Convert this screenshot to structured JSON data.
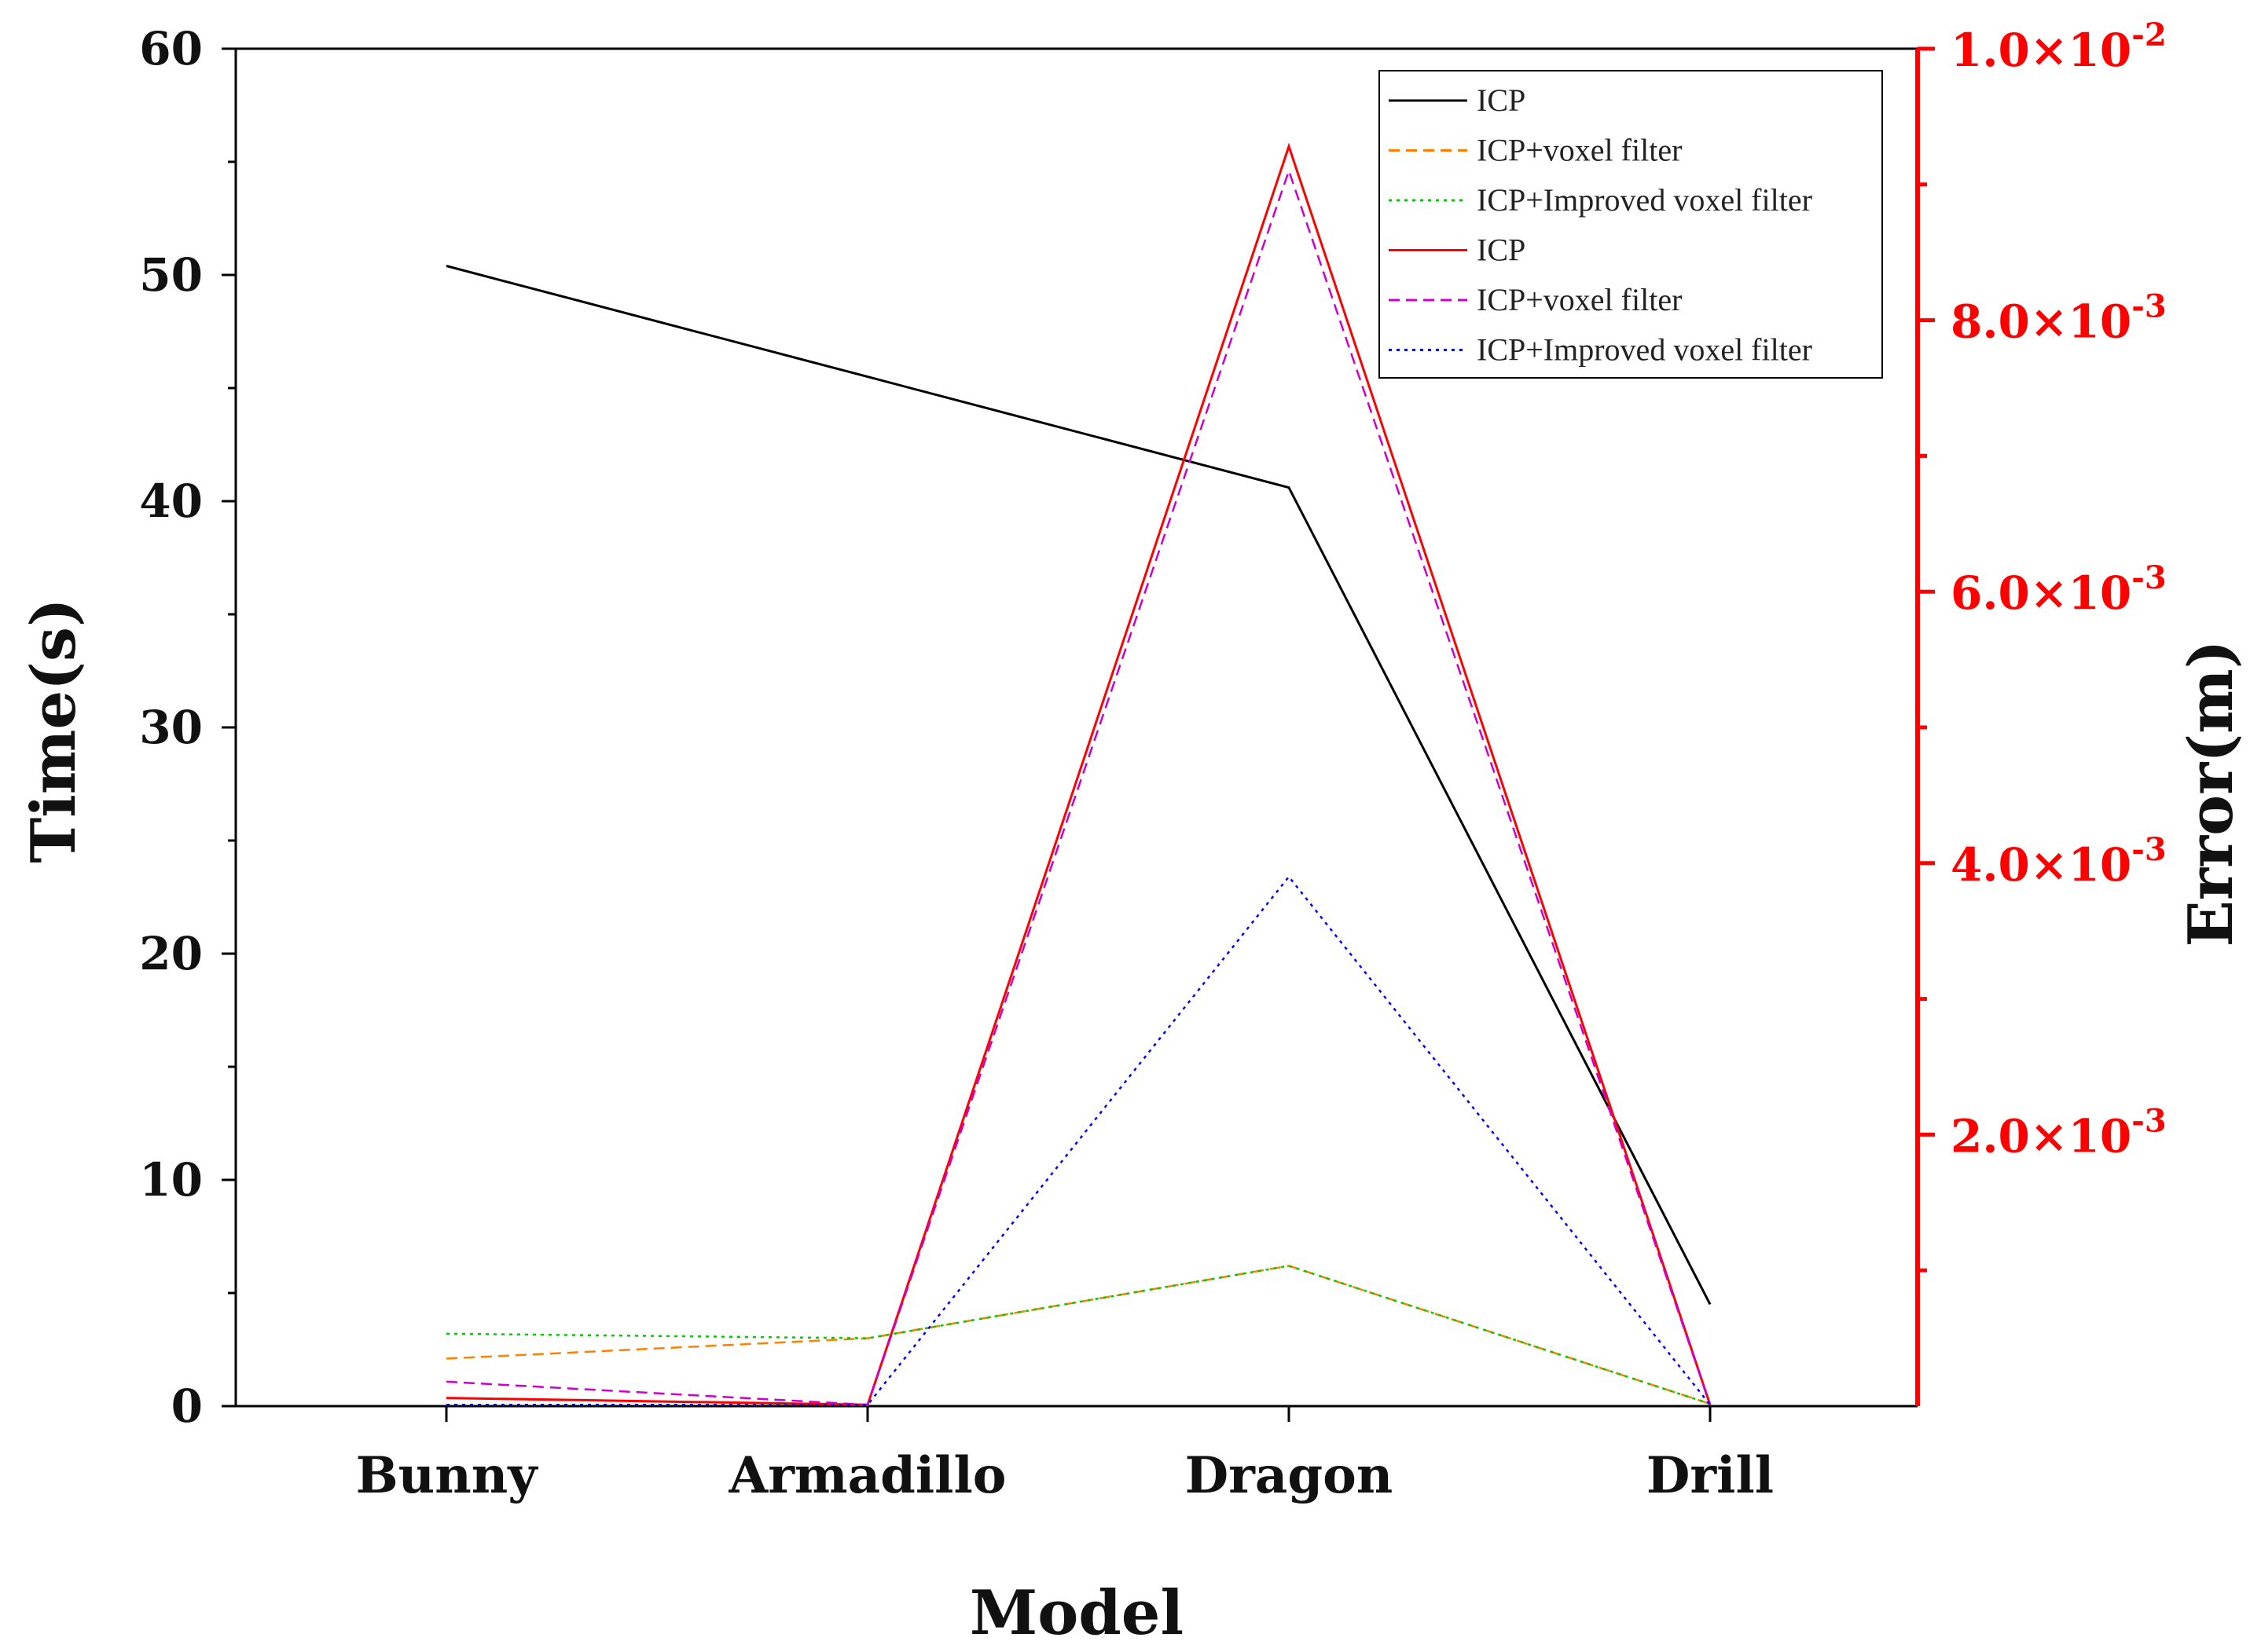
{
  "chart_data": {
    "type": "line",
    "categories": [
      "Bunny",
      "Armadillo",
      "Dragon",
      "Drill"
    ],
    "xlabel": "Model",
    "ylabel_left": "Time(s)",
    "ylabel_right": "Error(m)",
    "ylim_left": [
      0,
      60
    ],
    "ylim_right": [
      0,
      0.01
    ],
    "yticks_left": [
      "0",
      "10",
      "20",
      "30",
      "40",
      "50",
      "60"
    ],
    "yticks_right": [
      {
        "value": 0.002,
        "mantissa": "2.0×10",
        "exp": "-3"
      },
      {
        "value": 0.004,
        "mantissa": "4.0×10",
        "exp": "-3"
      },
      {
        "value": 0.006,
        "mantissa": "6.0×10",
        "exp": "-3"
      },
      {
        "value": 0.008,
        "mantissa": "8.0×10",
        "exp": "-3"
      },
      {
        "value": 0.01,
        "mantissa": "1.0×10",
        "exp": "-2"
      }
    ],
    "legend_position": "top-right",
    "grid": false,
    "series": [
      {
        "name": "ICP",
        "axis": "left",
        "color": "#000000",
        "dash": "solid",
        "values": [
          50.4,
          45.5,
          40.6,
          4.5
        ]
      },
      {
        "name": "ICP+voxel filter",
        "axis": "left",
        "color": "#ff8000",
        "dash": "dashed",
        "values": [
          2.1,
          3.0,
          6.2,
          0.1
        ]
      },
      {
        "name": "ICP+Improved voxel filter",
        "axis": "left",
        "color": "#00cc00",
        "dash": "dotted",
        "values": [
          3.2,
          3.0,
          6.2,
          0.1
        ]
      },
      {
        "name": "ICP",
        "axis": "right",
        "color": "#ff0000",
        "dash": "solid",
        "values": [
          6e-05,
          1e-05,
          0.00928,
          1e-05
        ]
      },
      {
        "name": "ICP+voxel filter",
        "axis": "right",
        "color": "#cc00cc",
        "dash": "dashed",
        "values": [
          0.00018,
          1e-05,
          0.0091,
          1e-05
        ]
      },
      {
        "name": "ICP+Improved voxel filter",
        "axis": "right",
        "color": "#0000ff",
        "dash": "dotted",
        "values": [
          1e-05,
          1e-05,
          0.0039,
          1e-05
        ]
      }
    ]
  }
}
